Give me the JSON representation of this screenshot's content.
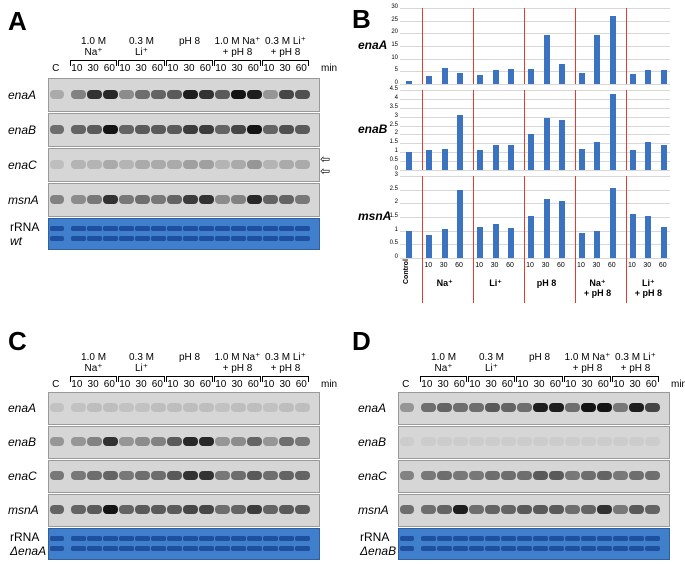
{
  "panels": {
    "A": {
      "letter": "A",
      "gene_labels": [
        "enaA",
        "enaB",
        "enaC",
        "msnA"
      ],
      "rrna_label": "rRNA",
      "strain_label": "wt"
    },
    "B": {
      "letter": "B",
      "gene_labels": [
        "enaA",
        "enaB",
        "msnA"
      ]
    },
    "C": {
      "letter": "C",
      "gene_labels": [
        "enaA",
        "enaB",
        "enaC",
        "msnA"
      ],
      "rrna_label": "rRNA",
      "strain_label": "ΔenaA"
    },
    "D": {
      "letter": "D",
      "gene_labels": [
        "enaA",
        "enaB",
        "enaC",
        "msnA"
      ],
      "rrna_label": "rRNA",
      "strain_label": "ΔenaB"
    }
  },
  "conditions": [
    {
      "line1": "1.0 M",
      "line2": "Na⁺"
    },
    {
      "line1": "0.3 M",
      "line2": "Li⁺"
    },
    {
      "line1": "pH 8",
      "line2": ""
    },
    {
      "line1": "1.0 M Na⁺",
      "line2": "+ pH 8"
    },
    {
      "line1": "0.3 M Li⁺",
      "line2": "+ pH 8"
    }
  ],
  "time_row": {
    "control": "C",
    "times": [
      "10",
      "30",
      "60"
    ],
    "unit": "min"
  },
  "chart_data": {
    "type": "bar",
    "categories": [
      "Control",
      "Na 10",
      "Na 30",
      "Na 60",
      "Li 10",
      "Li 30",
      "Li 60",
      "pH8 10",
      "pH8 30",
      "pH8 60",
      "Na+pH8 10",
      "Na+pH8 30",
      "Na+pH8 60",
      "Li+pH8 10",
      "Li+pH8 30",
      "Li+pH8 60"
    ],
    "time_labels": [
      "10",
      "30",
      "60"
    ],
    "group_labels": [
      "Control",
      "Na⁺",
      "Li⁺",
      "pH 8",
      "Na⁺\n+ pH 8",
      "Li⁺\n+ pH 8"
    ],
    "series": [
      {
        "name": "enaA",
        "values": [
          1,
          3,
          6.5,
          4.5,
          3.5,
          5.5,
          6,
          6,
          19.5,
          8,
          4.5,
          19.5,
          27,
          4,
          5.5,
          5.5
        ],
        "ylim": [
          0,
          30
        ],
        "ticks": [
          0,
          5,
          10,
          15,
          20,
          25,
          30
        ]
      },
      {
        "name": "enaB",
        "values": [
          1,
          1.1,
          1.2,
          3.1,
          1.1,
          1.4,
          1.4,
          2,
          2.9,
          2.8,
          1.2,
          1.6,
          4.3,
          1.1,
          1.6,
          1.4
        ],
        "ylim": [
          0,
          4.5
        ],
        "ticks": [
          0,
          0.5,
          1,
          1.5,
          2,
          2.5,
          3,
          3.5,
          4,
          4.5
        ]
      },
      {
        "name": "msnA",
        "values": [
          1,
          0.85,
          1.05,
          2.5,
          1.15,
          1.25,
          1.1,
          1.55,
          2.15,
          2.1,
          0.9,
          1,
          2.55,
          1.6,
          1.55,
          1.15
        ],
        "ylim": [
          0,
          3
        ],
        "ticks": [
          0,
          0.5,
          1,
          1.5,
          2,
          2.5,
          3
        ]
      }
    ]
  }
}
